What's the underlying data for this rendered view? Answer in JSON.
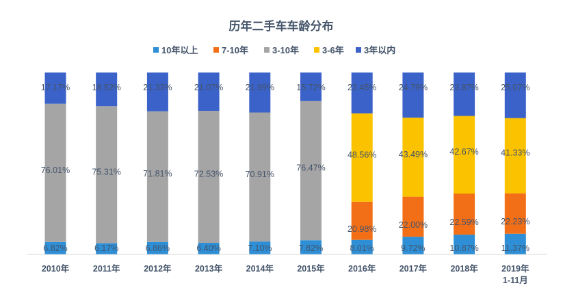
{
  "chart_data": {
    "type": "bar",
    "stacked": true,
    "percent": true,
    "title": "历年二手车车龄分布",
    "categories": [
      "2010年",
      "2011年",
      "2012年",
      "2013年",
      "2014年",
      "2015年",
      "2016年",
      "2017年",
      "2018年",
      "2019年\n1-11月"
    ],
    "series": [
      {
        "name": "10年以上",
        "color": "#2e8fd6",
        "values": [
          6.82,
          6.17,
          6.86,
          6.4,
          7.1,
          7.82,
          8.01,
          9.72,
          10.87,
          11.37
        ],
        "labels": [
          "6.82%",
          "6.17%",
          "6.86%",
          "6.40%",
          "7.10%",
          "7.82%",
          "8.01%",
          "9.72%",
          "10.87%",
          "11.37%"
        ]
      },
      {
        "name": "7-10年",
        "color": "#f36f17",
        "values": [
          0,
          0,
          0,
          0,
          0,
          0,
          20.98,
          22.0,
          22.59,
          22.23
        ],
        "labels": [
          "",
          "",
          "",
          "",
          "",
          "",
          "20.98%",
          "22.00%",
          "22.59%",
          "22.23%"
        ]
      },
      {
        "name": "3-10年",
        "color": "#a5a5a5",
        "values": [
          76.01,
          75.31,
          71.81,
          72.53,
          70.91,
          76.47,
          0,
          0,
          0,
          0
        ],
        "labels": [
          "76.01%",
          "75.31%",
          "71.81%",
          "72.53%",
          "70.91%",
          "76.47%",
          "",
          "",
          "",
          ""
        ]
      },
      {
        "name": "3-6年",
        "color": "#fbc200",
        "values": [
          0,
          0,
          0,
          0,
          0,
          0,
          48.56,
          43.49,
          42.67,
          41.33
        ],
        "labels": [
          "",
          "",
          "",
          "",
          "",
          "",
          "48.56%",
          "43.49%",
          "42.67%",
          "41.33%"
        ]
      },
      {
        "name": "3年以内",
        "color": "#3b62c8",
        "values": [
          17.17,
          18.52,
          21.33,
          21.07,
          21.99,
          15.72,
          22.45,
          24.79,
          23.87,
          25.07
        ],
        "labels": [
          "17.17%",
          "18.52%",
          "21.33%",
          "21.07%",
          "21.99%",
          "15.72%",
          "22.45%",
          "24.79%",
          "23.87%",
          "25.07%"
        ]
      }
    ],
    "legend": "top",
    "grid": false
  }
}
